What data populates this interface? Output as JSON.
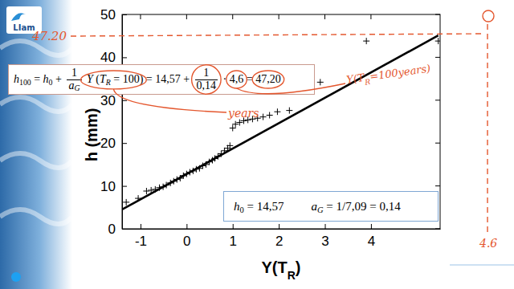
{
  "logo": "LIam",
  "chart_data": {
    "type": "scatter",
    "y_label": "h (mm)",
    "x_label": [
      "Y(T",
      {
        "sub": "R"
      },
      ")"
    ],
    "xlim": [
      -1.4,
      5.5
    ],
    "xticks": [
      -1,
      0,
      1,
      2,
      3,
      4
    ],
    "ylim": [
      0,
      50
    ],
    "yticks": [
      0,
      10,
      20,
      30,
      40,
      50
    ],
    "series": [
      {
        "type": "scatter",
        "marker": "plus",
        "color": "#000000",
        "x": [
          -1.31,
          -1.05,
          -0.87,
          -0.77,
          -0.68,
          -0.59,
          -0.51,
          -0.44,
          -0.35,
          -0.28,
          -0.21,
          -0.14,
          -0.07,
          0,
          0.07,
          0.14,
          0.21,
          0.28,
          0.35,
          0.42,
          0.49,
          0.56,
          0.61,
          0.68,
          0.75,
          0.82,
          0.89,
          0.94,
          1.0,
          1.06,
          1.15,
          1.24,
          1.33,
          1.43,
          1.54,
          1.66,
          1.8,
          1.97,
          2.23,
          2.9,
          3.9,
          5.46
        ],
        "values": [
          6.2,
          7.1,
          8.8,
          9.0,
          9.2,
          9.6,
          9.8,
          10.2,
          10.7,
          11.1,
          11.5,
          11.8,
          12.4,
          12.8,
          13.2,
          13.5,
          13.9,
          14.1,
          14.7,
          15.0,
          15.6,
          16.0,
          16.4,
          16.9,
          17.5,
          18.2,
          18.8,
          19.4,
          23.5,
          24.4,
          24.8,
          25.2,
          25.4,
          25.6,
          25.8,
          26.1,
          26.5,
          27.3,
          27.6,
          34.2,
          43.8,
          43.8
        ]
      },
      {
        "type": "line",
        "line_style": "solid",
        "color": "#000000",
        "x": [
          -1.4,
          5.46
        ],
        "values": [
          4.5,
          45.1
        ]
      }
    ],
    "annotations": {
      "formula": [
        "h",
        {
          "sub": "100"
        },
        " = h",
        {
          "sub": "0"
        },
        " + ",
        {
          "num": "1",
          "den": "a",
          "den_sub": "G"
        },
        " Y (T",
        {
          "sub": "R"
        },
        " = 100)",
        " = 14,57 + ",
        {
          "num": "1",
          "den": "0,14"
        },
        " · ",
        "4,6",
        " = ",
        "47,20"
      ],
      "fit_box": [
        [
          "h",
          {
            "sub": "0"
          },
          " = 14,57"
        ],
        [
          "a",
          {
            "sub": "G"
          },
          " = 1/7,09 = 0,14"
        ]
      ],
      "handwritten": {
        "level": "47.20",
        "years": "years",
        "return_period": [
          "Y(T",
          {
            "sub": "R"
          },
          "=100years)"
        ],
        "x_end": "4.6"
      }
    }
  }
}
